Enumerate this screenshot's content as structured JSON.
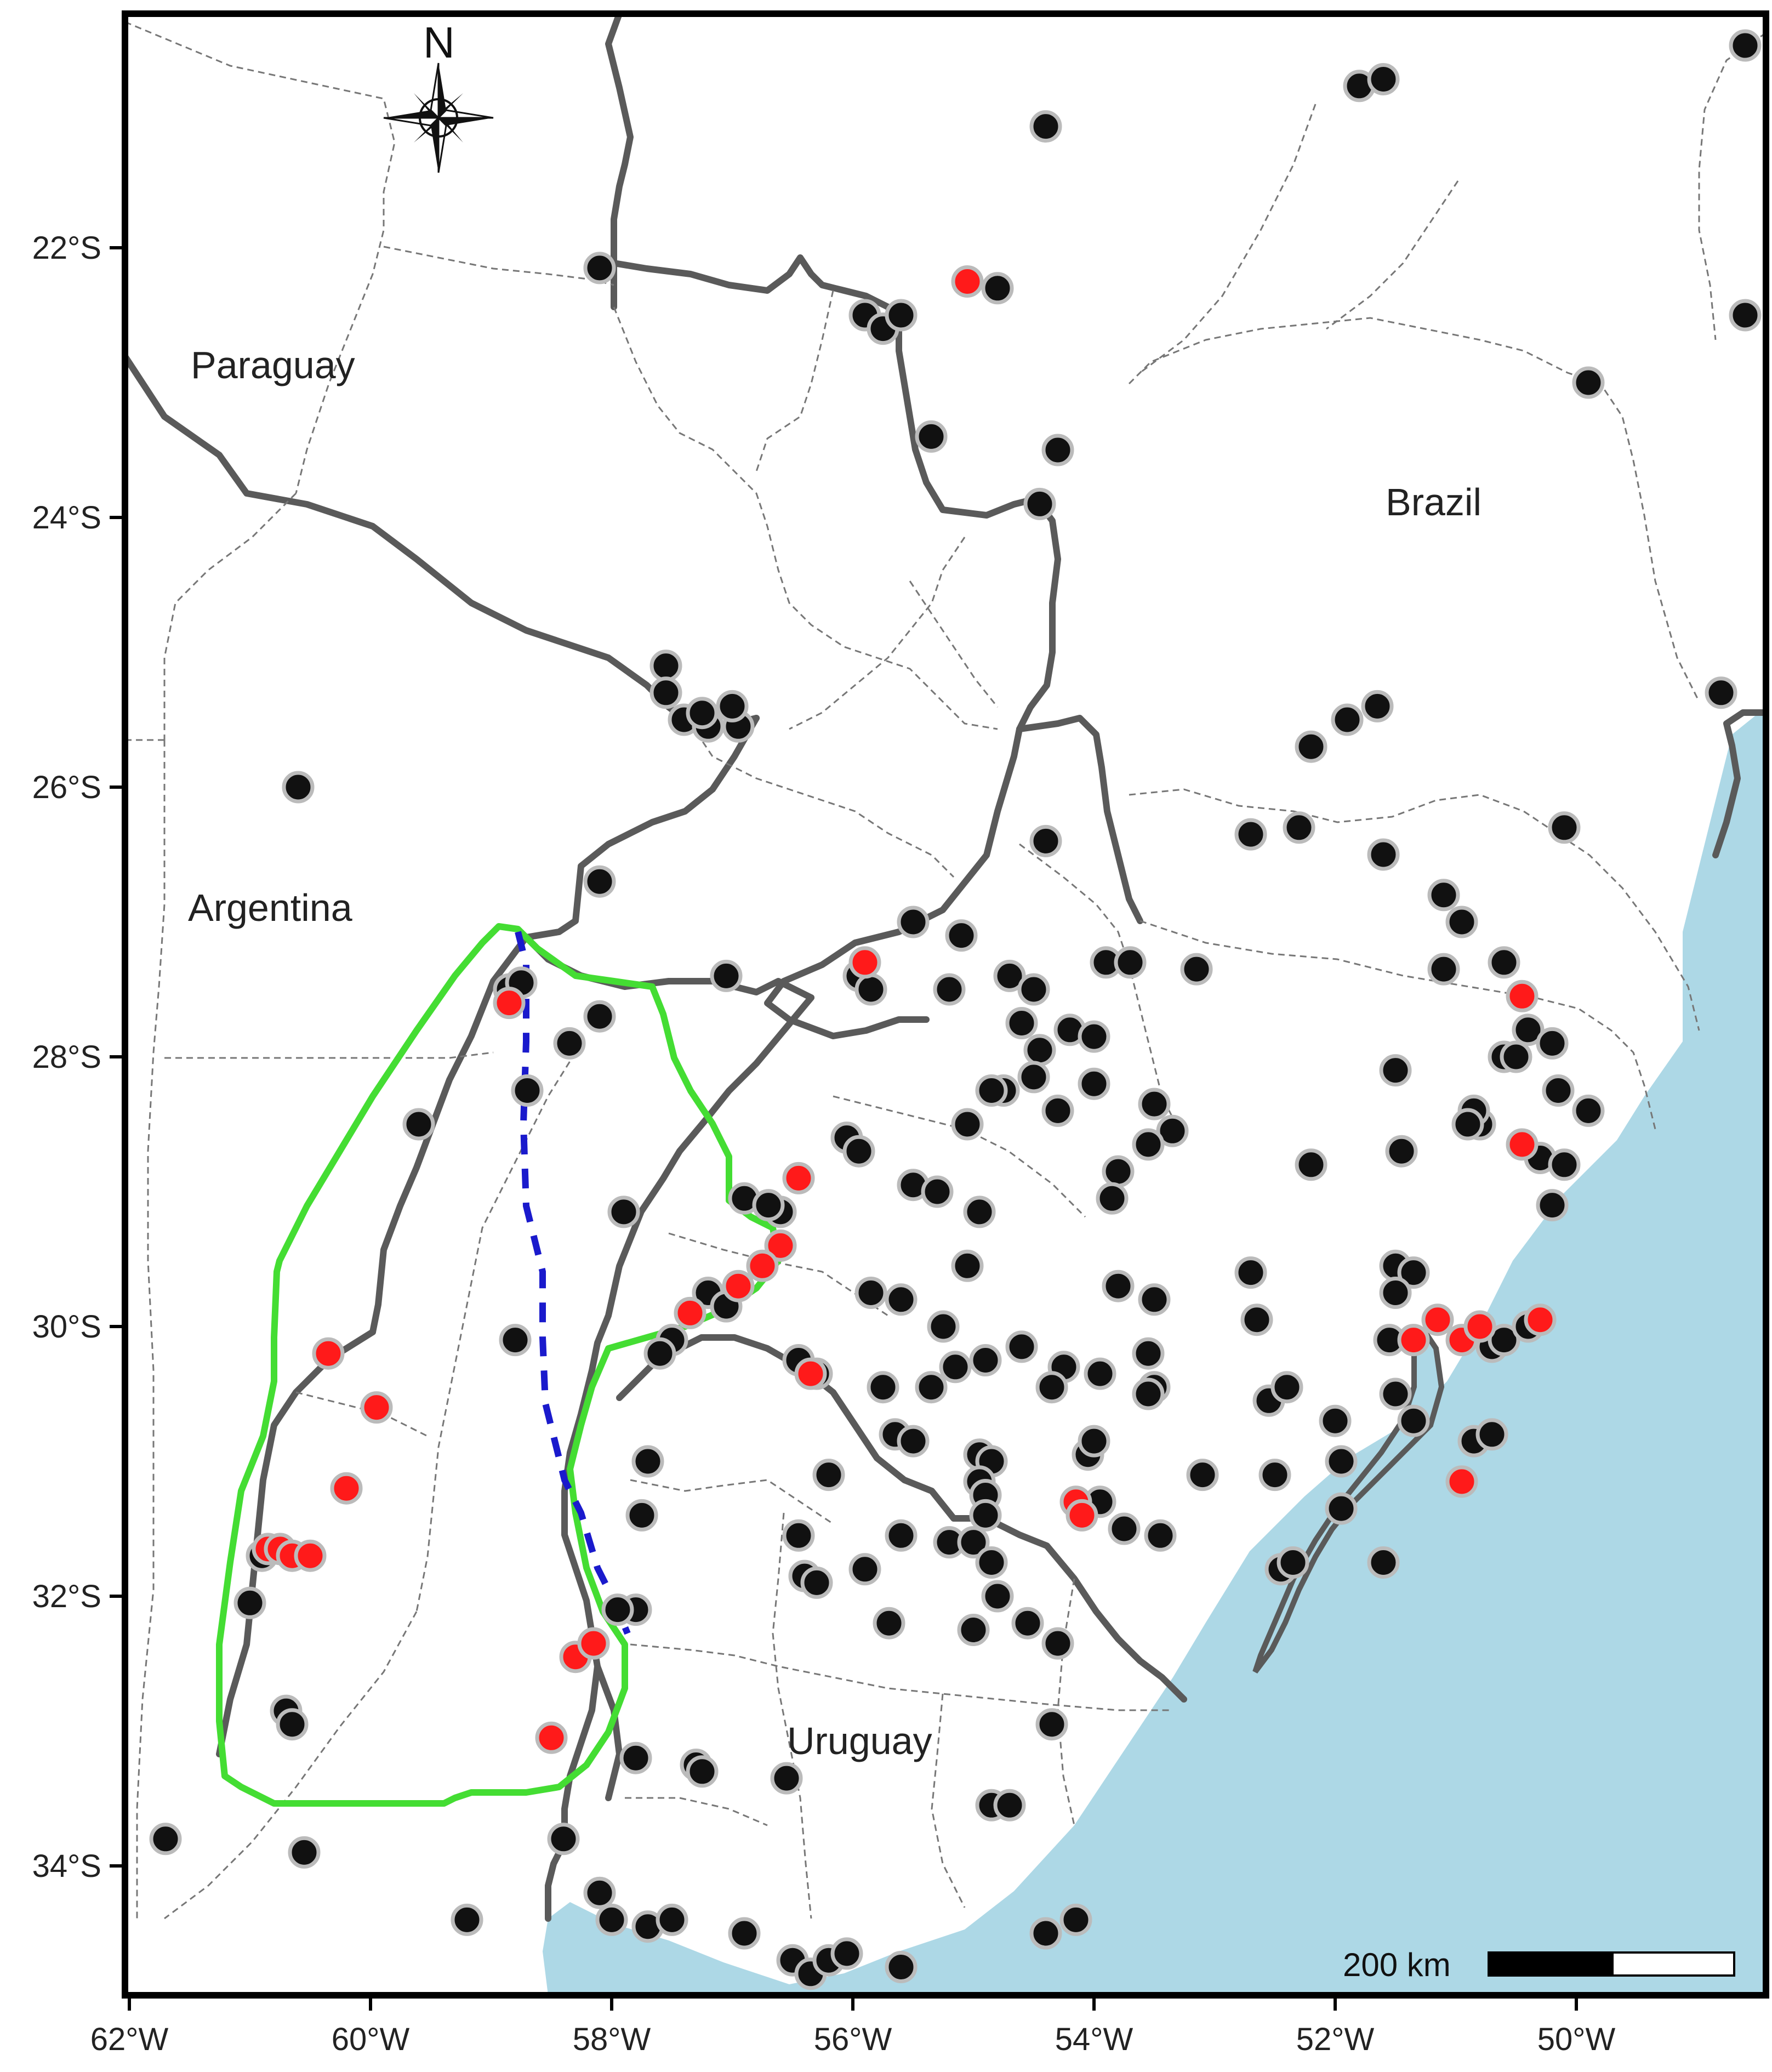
{
  "map": {
    "countries": [
      "Paraguay",
      "Brazil",
      "Argentina",
      "Uruguay"
    ],
    "north_label": "N",
    "scale_bar_label": "200 km",
    "colors": {
      "ocean": "#add8e6",
      "land": "#ffffff",
      "country_border": "#5a5a5a",
      "state_border": "#777777",
      "study_region_outline": "#44dd33",
      "divide_line": "#1a1acc",
      "record_dot": "#111111",
      "highlight_dot": "#ff1a1a",
      "dot_halo": "#bbbbbb"
    },
    "legend_symbols": [
      "compass-rose-icon",
      "scale-bar"
    ]
  },
  "axes": {
    "x_ticks": [
      "62°W",
      "60°W",
      "58°W",
      "56°W",
      "54°W",
      "52°W",
      "50°W"
    ],
    "y_ticks": [
      "22°S",
      "24°S",
      "26°S",
      "28°S",
      "30°S",
      "32°S",
      "34°S"
    ],
    "lon_range": [
      -62,
      -48.6
    ],
    "lat_range": [
      -35,
      -20.8
    ]
  },
  "records": {
    "black": [
      [
        -48.6,
        -20.5
      ],
      [
        -51.8,
        -20.8
      ],
      [
        -51.6,
        -20.75
      ],
      [
        -54.4,
        -21.1
      ],
      [
        -58.1,
        -22.15
      ],
      [
        -55.9,
        -22.5
      ],
      [
        -55.75,
        -22.6
      ],
      [
        -55.6,
        -22.5
      ],
      [
        -54.8,
        -22.3
      ],
      [
        -55.35,
        -23.4
      ],
      [
        -54.3,
        -23.5
      ],
      [
        -54.45,
        -23.9
      ],
      [
        -48.6,
        -22.5
      ],
      [
        -49.9,
        -23.0
      ],
      [
        -57.55,
        -25.1
      ],
      [
        -57.55,
        -25.3
      ],
      [
        -57.4,
        -25.5
      ],
      [
        -57.2,
        -25.55
      ],
      [
        -57.25,
        -25.45
      ],
      [
        -56.95,
        -25.55
      ],
      [
        -57.0,
        -25.4
      ],
      [
        -60.6,
        -26.0
      ],
      [
        -58.1,
        -26.7
      ],
      [
        -52.2,
        -25.7
      ],
      [
        -51.9,
        -25.5
      ],
      [
        -51.65,
        -25.4
      ],
      [
        -48.8,
        -25.3
      ],
      [
        -50.1,
        -26.3
      ],
      [
        -52.3,
        -26.3
      ],
      [
        -51.6,
        -26.5
      ],
      [
        -51.1,
        -26.8
      ],
      [
        -50.95,
        -27.0
      ],
      [
        -54.4,
        -26.4
      ],
      [
        -55.5,
        -27.0
      ],
      [
        -55.1,
        -27.1
      ],
      [
        -55.95,
        -27.4
      ],
      [
        -55.85,
        -27.5
      ],
      [
        -54.7,
        -27.4
      ],
      [
        -54.5,
        -27.5
      ],
      [
        -55.2,
        -27.5
      ],
      [
        -53.9,
        -27.3
      ],
      [
        -53.7,
        -27.3
      ],
      [
        -53.15,
        -27.35
      ],
      [
        -52.7,
        -26.35
      ],
      [
        -58.85,
        -27.5
      ],
      [
        -58.75,
        -27.45
      ],
      [
        -58.35,
        -27.9
      ],
      [
        -58.1,
        -27.7
      ],
      [
        -58.7,
        -28.25
      ],
      [
        -59.6,
        -28.5
      ],
      [
        -57.05,
        -27.4
      ],
      [
        -54.6,
        -27.75
      ],
      [
        -54.2,
        -27.8
      ],
      [
        -54.45,
        -27.95
      ],
      [
        -54.0,
        -27.85
      ],
      [
        -54.75,
        -28.25
      ],
      [
        -54.5,
        -28.15
      ],
      [
        -54.3,
        -28.4
      ],
      [
        -54.0,
        -28.2
      ],
      [
        -53.5,
        -28.35
      ],
      [
        -53.35,
        -28.55
      ],
      [
        -51.5,
        -28.1
      ],
      [
        -51.45,
        -28.7
      ],
      [
        -50.8,
        -28.5
      ],
      [
        -50.85,
        -28.4
      ],
      [
        -50.9,
        -28.5
      ],
      [
        -50.6,
        -28.0
      ],
      [
        -50.5,
        -28.0
      ],
      [
        -50.4,
        -27.8
      ],
      [
        -50.2,
        -27.9
      ],
      [
        -50.15,
        -28.25
      ],
      [
        -50.3,
        -28.75
      ],
      [
        -51.1,
        -27.35
      ],
      [
        -50.6,
        -27.3
      ],
      [
        -50.2,
        -29.1
      ],
      [
        -57.9,
        -29.15
      ],
      [
        -56.9,
        -29.05
      ],
      [
        -56.6,
        -29.15
      ],
      [
        -56.7,
        -29.1
      ],
      [
        -56.05,
        -28.6
      ],
      [
        -55.95,
        -28.7
      ],
      [
        -55.5,
        -28.95
      ],
      [
        -55.3,
        -29.0
      ],
      [
        -54.95,
        -29.15
      ],
      [
        -54.85,
        -28.25
      ],
      [
        -55.05,
        -28.5
      ],
      [
        -53.8,
        -28.85
      ],
      [
        -53.85,
        -29.05
      ],
      [
        -53.55,
        -28.65
      ],
      [
        -52.2,
        -28.8
      ],
      [
        -58.8,
        -30.1
      ],
      [
        -57.2,
        -29.75
      ],
      [
        -57.05,
        -29.85
      ],
      [
        -57.5,
        -30.1
      ],
      [
        -57.6,
        -30.2
      ],
      [
        -56.45,
        -30.25
      ],
      [
        -56.3,
        -30.35
      ],
      [
        -55.85,
        -29.75
      ],
      [
        -55.6,
        -29.8
      ],
      [
        -55.25,
        -30.0
      ],
      [
        -55.05,
        -29.55
      ],
      [
        -55.15,
        -30.3
      ],
      [
        -55.35,
        -30.45
      ],
      [
        -55.75,
        -30.45
      ],
      [
        -54.9,
        -30.25
      ],
      [
        -54.6,
        -30.15
      ],
      [
        -54.25,
        -30.3
      ],
      [
        -54.35,
        -30.45
      ],
      [
        -53.8,
        -29.7
      ],
      [
        -53.5,
        -29.8
      ],
      [
        -53.95,
        -30.35
      ],
      [
        -53.55,
        -30.2
      ],
      [
        -53.5,
        -30.45
      ],
      [
        -53.55,
        -30.5
      ],
      [
        -52.7,
        -29.6
      ],
      [
        -52.65,
        -29.95
      ],
      [
        -51.5,
        -29.55
      ],
      [
        -51.35,
        -29.6
      ],
      [
        -51.5,
        -29.75
      ],
      [
        -51.55,
        -30.1
      ],
      [
        -50.7,
        -30.15
      ],
      [
        -50.6,
        -30.1
      ],
      [
        -50.4,
        -30.0
      ],
      [
        -51.5,
        -30.5
      ],
      [
        -51.35,
        -30.7
      ],
      [
        -52.55,
        -30.55
      ],
      [
        -52.4,
        -30.45
      ],
      [
        -52.0,
        -30.7
      ],
      [
        -51.95,
        -31.0
      ],
      [
        -57.7,
        -31.0
      ],
      [
        -57.75,
        -31.4
      ],
      [
        -56.2,
        -31.1
      ],
      [
        -55.65,
        -30.8
      ],
      [
        -55.5,
        -30.85
      ],
      [
        -54.95,
        -30.95
      ],
      [
        -54.85,
        -31.0
      ],
      [
        -54.95,
        -31.15
      ],
      [
        -54.9,
        -31.25
      ],
      [
        -54.9,
        -31.4
      ],
      [
        -54.05,
        -30.95
      ],
      [
        -54.0,
        -30.85
      ],
      [
        -53.95,
        -31.3
      ],
      [
        -53.75,
        -31.5
      ],
      [
        -53.45,
        -31.55
      ],
      [
        -53.1,
        -31.1
      ],
      [
        -52.5,
        -31.1
      ],
      [
        -51.95,
        -31.35
      ],
      [
        -52.45,
        -31.8
      ],
      [
        -52.35,
        -31.75
      ],
      [
        -51.6,
        -31.75
      ],
      [
        -50.85,
        -30.85
      ],
      [
        -50.7,
        -30.8
      ],
      [
        -56.45,
        -31.55
      ],
      [
        -55.6,
        -31.55
      ],
      [
        -55.2,
        -31.6
      ],
      [
        -55.0,
        -31.6
      ],
      [
        -56.4,
        -31.85
      ],
      [
        -56.3,
        -31.9
      ],
      [
        -55.9,
        -31.8
      ],
      [
        -54.85,
        -31.75
      ],
      [
        -54.8,
        -32.0
      ],
      [
        -54.55,
        -32.2
      ],
      [
        -54.3,
        -32.35
      ],
      [
        -55.7,
        -32.2
      ],
      [
        -55.0,
        -32.25
      ],
      [
        -57.8,
        -32.1
      ],
      [
        -57.95,
        -32.1
      ],
      [
        -60.9,
        -31.7
      ],
      [
        -61.0,
        -32.05
      ],
      [
        -60.7,
        -32.85
      ],
      [
        -60.65,
        -32.95
      ],
      [
        -57.8,
        -33.2
      ],
      [
        -57.3,
        -33.25
      ],
      [
        -57.25,
        -33.3
      ],
      [
        -56.55,
        -33.35
      ],
      [
        -54.35,
        -32.95
      ],
      [
        -54.85,
        -33.55
      ],
      [
        -54.7,
        -33.55
      ],
      [
        -61.7,
        -33.8
      ],
      [
        -60.55,
        -33.9
      ],
      [
        -58.4,
        -33.8
      ],
      [
        -59.2,
        -34.4
      ],
      [
        -58.1,
        -34.2
      ],
      [
        -58.0,
        -34.4
      ],
      [
        -57.7,
        -34.45
      ],
      [
        -57.5,
        -34.4
      ],
      [
        -56.9,
        -34.5
      ],
      [
        -56.5,
        -34.7
      ],
      [
        -56.35,
        -34.8
      ],
      [
        -56.2,
        -34.7
      ],
      [
        -56.05,
        -34.65
      ],
      [
        -55.6,
        -34.75
      ],
      [
        -54.4,
        -34.5
      ],
      [
        -54.15,
        -34.4
      ],
      [
        -50.1,
        -28.8
      ],
      [
        -49.9,
        -28.4
      ]
    ],
    "red": [
      [
        -55.05,
        -22.25
      ],
      [
        -55.9,
        -27.3
      ],
      [
        -58.85,
        -27.6
      ],
      [
        -56.45,
        -28.9
      ],
      [
        -56.6,
        -29.4
      ],
      [
        -56.75,
        -29.55
      ],
      [
        -56.95,
        -29.7
      ],
      [
        -57.35,
        -29.9
      ],
      [
        -56.35,
        -30.35
      ],
      [
        -60.35,
        -30.2
      ],
      [
        -59.95,
        -30.6
      ],
      [
        -60.2,
        -31.2
      ],
      [
        -60.85,
        -31.65
      ],
      [
        -60.75,
        -31.65
      ],
      [
        -60.65,
        -31.7
      ],
      [
        -60.5,
        -31.7
      ],
      [
        -54.15,
        -31.3
      ],
      [
        -54.1,
        -31.4
      ],
      [
        -51.35,
        -30.1
      ],
      [
        -51.15,
        -29.95
      ],
      [
        -50.95,
        -30.1
      ],
      [
        -50.8,
        -30.0
      ],
      [
        -50.3,
        -29.95
      ],
      [
        -50.45,
        -27.55
      ],
      [
        -50.45,
        -28.65
      ],
      [
        -50.95,
        -31.15
      ],
      [
        -58.3,
        -32.45
      ],
      [
        -58.15,
        -32.35
      ],
      [
        -58.5,
        -33.05
      ]
    ]
  }
}
